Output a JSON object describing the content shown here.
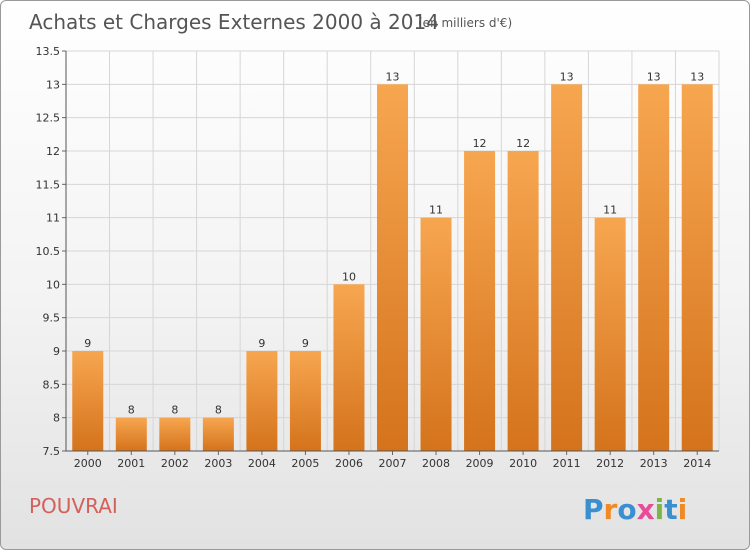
{
  "header": {
    "title": "Achats et Charges Externes 2000 à 2014",
    "unit": "(en milliers d'€)"
  },
  "footer": {
    "commune": "POUVRAI",
    "logo_letters": [
      "P",
      "r",
      "o",
      "x",
      "i",
      "t",
      "i"
    ],
    "logo_colors": [
      "#3a8fd1",
      "#f08a24",
      "#3a8fd1",
      "#e94b9a",
      "#7ab648",
      "#3a8fd1",
      "#f08a24"
    ]
  },
  "chart_data": {
    "type": "bar",
    "title": "Achats et Charges Externes 2000 à 2014",
    "categories": [
      "2000",
      "2001",
      "2002",
      "2003",
      "2004",
      "2005",
      "2006",
      "2007",
      "2008",
      "2009",
      "2010",
      "2011",
      "2012",
      "2013",
      "2014"
    ],
    "values": [
      9,
      8,
      8,
      8,
      9,
      9,
      10,
      13,
      11,
      12,
      12,
      13,
      11,
      13,
      13
    ],
    "value_labels": [
      "9",
      "8",
      "8",
      "8",
      "9",
      "9",
      "10",
      "13",
      "11",
      "12",
      "12",
      "13",
      "11",
      "13",
      "13"
    ],
    "ylim": [
      7.5,
      13.5
    ],
    "yticks": [
      7.5,
      8,
      8.5,
      9,
      9.5,
      10,
      10.5,
      11,
      11.5,
      12,
      12.5,
      13,
      13.5
    ],
    "ytick_labels": [
      "7.5",
      "8",
      "8.5",
      "9",
      "9.5",
      "10",
      "10.5",
      "11",
      "11.5",
      "12",
      "12.5",
      "13",
      "13.5"
    ],
    "grid": true,
    "bar_color_top": "#f7a650",
    "bar_color_bottom": "#d4731c"
  }
}
